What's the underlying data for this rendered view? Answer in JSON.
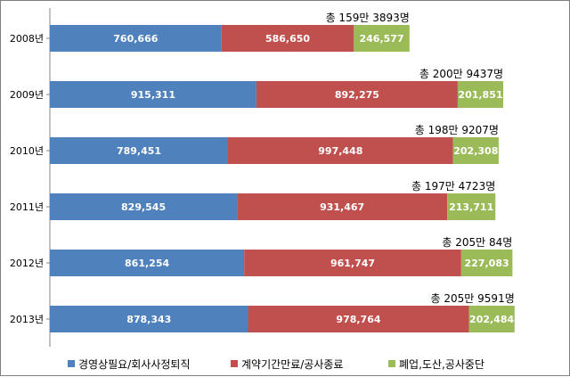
{
  "chart_data": {
    "type": "bar",
    "orientation": "horizontal",
    "stacked": true,
    "categories": [
      "2008년",
      "2009년",
      "2010년",
      "2011년",
      "2012년",
      "2013년"
    ],
    "series": [
      {
        "name": "경영상필요/회사사정퇴직",
        "color": "#4f81bd",
        "values": [
          760666,
          915311,
          789451,
          829545,
          861254,
          878343
        ]
      },
      {
        "name": "계약기간만료/공사종료",
        "color": "#c0504d",
        "values": [
          586650,
          892275,
          997448,
          931467,
          961747,
          978764
        ]
      },
      {
        "name": "폐업,도산,공사중단",
        "color": "#9bbb59",
        "values": [
          246577,
          201851,
          202308,
          213711,
          227083,
          202484
        ]
      }
    ],
    "value_labels": [
      [
        "760,666",
        "586,650",
        "246,577"
      ],
      [
        "915,311",
        "892,275",
        "201,851"
      ],
      [
        "789,451",
        "997,448",
        "202,308"
      ],
      [
        "829,545",
        "931,467",
        "213,711"
      ],
      [
        "861,254",
        "961,747",
        "227,083"
      ],
      [
        "878,343",
        "978,764",
        "202,484"
      ]
    ],
    "totals": [
      "총 159만 3893명",
      "총 200만 9437명",
      "총 198만 9207명",
      "총 197만 4723명",
      "총 205만  84명",
      "총 205만 9591명"
    ],
    "legend_position": "bottom",
    "grid": false,
    "title": "",
    "xlabel": "",
    "ylabel": ""
  }
}
